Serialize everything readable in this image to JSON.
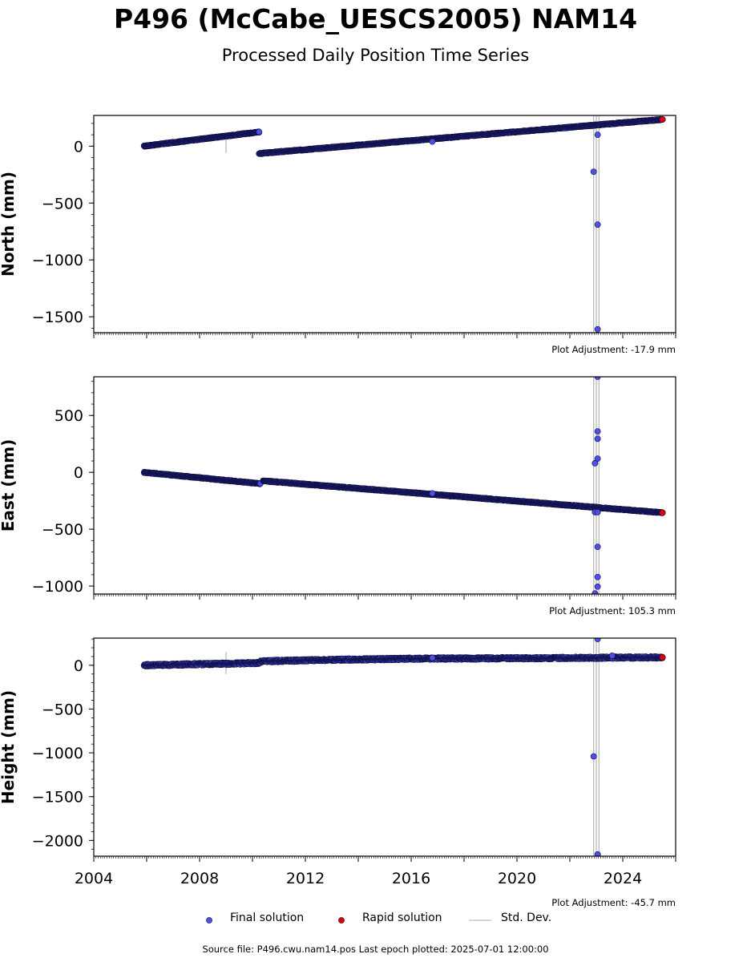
{
  "title": "P496 (McCabe_UESCS2005) NAM14",
  "subtitle": "Processed Daily Position Time Series",
  "footer": "Source file: P496.cwu.nam14.pos  Last epoch plotted: 2025-07-01 12:00:00",
  "legend": {
    "final": "Final solution",
    "rapid": "Rapid solution",
    "std": "Std. Dev."
  },
  "colors": {
    "final_fill": "#4f4fe6",
    "final_edge": "#101048",
    "rapid_fill": "#e00000",
    "std_line": "#c8c8c8",
    "frame": "#000000"
  },
  "chart_data": [
    {
      "type": "scatter",
      "ylabel": "North (mm)",
      "adjustment": "Plot Adjustment: -17.9 mm",
      "ylim": [
        -1640,
        270
      ],
      "xlim": [
        2004.0,
        2026.0
      ],
      "yticks": [
        0,
        -500,
        -1000,
        -1500
      ],
      "ytick_labels": [
        "0",
        "−500",
        "−1000",
        "−1500"
      ],
      "segments": [
        {
          "x": [
            2005.9,
            2010.25
          ],
          "y": [
            0,
            125
          ]
        },
        {
          "x": [
            2010.25,
            2025.5
          ],
          "y": [
            -65,
            235
          ]
        }
      ],
      "outliers": [
        {
          "x": 2022.9,
          "y": -225
        },
        {
          "x": 2023.05,
          "y": 100
        },
        {
          "x": 2023.05,
          "y": -690
        },
        {
          "x": 2023.05,
          "y": -1610
        },
        {
          "x": 2010.25,
          "y": 125
        },
        {
          "x": 2016.8,
          "y": 40
        }
      ],
      "rapid": [
        {
          "x": 2025.5,
          "y": 235
        }
      ],
      "std_lines": [
        {
          "x": 2009.0,
          "y": [
            -60,
            60
          ]
        },
        {
          "x": 2022.9,
          "y": [
            -1640,
            270
          ]
        },
        {
          "x": 2023.0,
          "y": [
            -1640,
            270
          ]
        },
        {
          "x": 2023.1,
          "y": [
            -1640,
            270
          ]
        }
      ]
    },
    {
      "type": "scatter",
      "ylabel": "East (mm)",
      "adjustment": "Plot Adjustment: 105.3 mm",
      "ylim": [
        -1070,
        840
      ],
      "xlim": [
        2004.0,
        2026.0
      ],
      "yticks": [
        500,
        0,
        -500,
        -1000
      ],
      "ytick_labels": [
        "500",
        "0",
        "−500",
        "−1000"
      ],
      "segments": [
        {
          "x": [
            2005.9,
            2010.3
          ],
          "y": [
            0,
            -100
          ]
        },
        {
          "x": [
            2010.4,
            2025.5
          ],
          "y": [
            -75,
            -355
          ]
        }
      ],
      "outliers": [
        {
          "x": 2023.05,
          "y": 840
        },
        {
          "x": 2023.05,
          "y": 360
        },
        {
          "x": 2023.05,
          "y": 295
        },
        {
          "x": 2023.05,
          "y": 120
        },
        {
          "x": 2022.95,
          "y": 80
        },
        {
          "x": 2022.95,
          "y": -350
        },
        {
          "x": 2023.05,
          "y": -350
        },
        {
          "x": 2023.05,
          "y": -655
        },
        {
          "x": 2023.05,
          "y": -920
        },
        {
          "x": 2023.05,
          "y": -1005
        },
        {
          "x": 2022.95,
          "y": -1065
        },
        {
          "x": 2016.8,
          "y": -185
        }
      ],
      "rapid": [
        {
          "x": 2025.5,
          "y": -355
        }
      ],
      "std_lines": [
        {
          "x": 2022.9,
          "y": [
            -1070,
            840
          ]
        },
        {
          "x": 2023.0,
          "y": [
            -1070,
            840
          ]
        },
        {
          "x": 2023.1,
          "y": [
            -1070,
            840
          ]
        }
      ]
    },
    {
      "type": "scatter",
      "ylabel": "Height (mm)",
      "adjustment": "Plot Adjustment: -45.7 mm",
      "ylim": [
        -2180,
        310
      ],
      "xlim": [
        2004.0,
        2026.0
      ],
      "xticks": [
        2004,
        2008,
        2012,
        2016,
        2020,
        2024
      ],
      "xtick_labels": [
        "2004",
        "2008",
        "2012",
        "2016",
        "2020",
        "2024"
      ],
      "yticks": [
        0,
        -500,
        -1000,
        -1500,
        -2000
      ],
      "ytick_labels": [
        "0",
        "−500",
        "−1000",
        "−1500",
        "−2000"
      ],
      "segments": [
        {
          "x": [
            2005.9,
            2007.5
          ],
          "y": [
            0,
            10
          ]
        },
        {
          "x": [
            2007.5,
            2010.3
          ],
          "y": [
            10,
            25
          ]
        },
        {
          "x": [
            2010.3,
            2012.5
          ],
          "y": [
            45,
            60
          ]
        },
        {
          "x": [
            2012.5,
            2016.0
          ],
          "y": [
            60,
            75
          ]
        },
        {
          "x": [
            2016.0,
            2020.0
          ],
          "y": [
            75,
            80
          ]
        },
        {
          "x": [
            2020.0,
            2025.5
          ],
          "y": [
            80,
            90
          ]
        }
      ],
      "outliers": [
        {
          "x": 2023.05,
          "y": 300
        },
        {
          "x": 2022.9,
          "y": -1040
        },
        {
          "x": 2023.05,
          "y": -2160
        },
        {
          "x": 2016.8,
          "y": 85
        },
        {
          "x": 2023.6,
          "y": 110
        }
      ],
      "rapid": [
        {
          "x": 2025.5,
          "y": 90
        }
      ],
      "std_lines": [
        {
          "x": 2009.0,
          "y": [
            -100,
            150
          ]
        },
        {
          "x": 2022.9,
          "y": [
            -2180,
            310
          ]
        },
        {
          "x": 2023.0,
          "y": [
            -2180,
            310
          ]
        },
        {
          "x": 2023.1,
          "y": [
            -2180,
            310
          ]
        }
      ]
    }
  ]
}
